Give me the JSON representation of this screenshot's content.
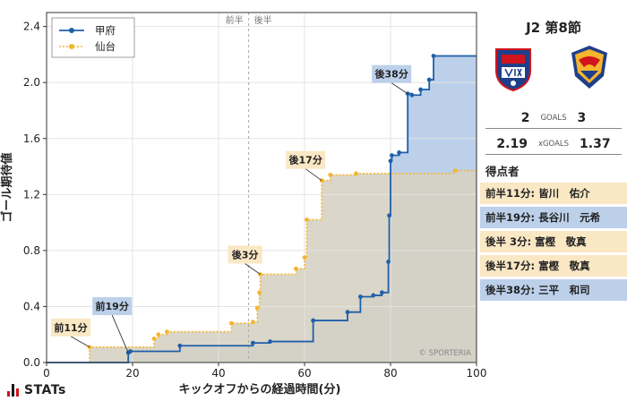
{
  "chart_data": {
    "type": "step-line",
    "xlabel": "キックオフからの経過時間(分)",
    "ylabel": "ゴール期待値",
    "xlim": [
      0,
      100
    ],
    "ylim": [
      0,
      2.5
    ],
    "xticks": [
      0,
      20,
      40,
      60,
      80,
      100
    ],
    "yticks": [
      0.0,
      0.4,
      0.8,
      1.2,
      1.6,
      2.0,
      2.4
    ],
    "halftime_x": 47,
    "halftime_labels": [
      "前半",
      "後半"
    ],
    "watermark": "© SPORTERIA",
    "legend": {
      "position": "top-left"
    },
    "series": [
      {
        "name": "甲府",
        "color": "#1f5fa8",
        "fill": "#bcd0ea",
        "points": [
          [
            0,
            0.0
          ],
          [
            19,
            0.07
          ],
          [
            19.5,
            0.08
          ],
          [
            31,
            0.12
          ],
          [
            48,
            0.14
          ],
          [
            52,
            0.15
          ],
          [
            62,
            0.3
          ],
          [
            70,
            0.36
          ],
          [
            73,
            0.47
          ],
          [
            76,
            0.48
          ],
          [
            78,
            0.5
          ],
          [
            79.5,
            0.72
          ],
          [
            79.7,
            1.05
          ],
          [
            80,
            1.44
          ],
          [
            80.3,
            1.48
          ],
          [
            82,
            1.5
          ],
          [
            84,
            1.92
          ],
          [
            85,
            1.91
          ],
          [
            87,
            1.95
          ],
          [
            89,
            2.02
          ],
          [
            90,
            2.19
          ],
          [
            100,
            2.19
          ]
        ],
        "annotations": [
          {
            "label": "前19分",
            "x": 19,
            "y": 0.07
          },
          {
            "label": "後38分",
            "x": 84,
            "y": 1.92
          }
        ]
      },
      {
        "name": "仙台",
        "color": "#f5b52e",
        "fill": "#fae7c4",
        "points": [
          [
            0,
            0.0
          ],
          [
            10,
            0.11
          ],
          [
            25,
            0.17
          ],
          [
            26,
            0.2
          ],
          [
            28,
            0.22
          ],
          [
            43,
            0.28
          ],
          [
            48,
            0.29
          ],
          [
            49,
            0.39
          ],
          [
            49.5,
            0.5
          ],
          [
            49.7,
            0.63
          ],
          [
            58,
            0.67
          ],
          [
            60,
            0.75
          ],
          [
            60.5,
            1.02
          ],
          [
            64,
            1.3
          ],
          [
            66,
            1.34
          ],
          [
            72,
            1.35
          ],
          [
            95,
            1.37
          ],
          [
            100,
            1.37
          ]
        ],
        "annotations": [
          {
            "label": "前11分",
            "x": 10,
            "y": 0.11
          },
          {
            "label": "後3分",
            "x": 49.7,
            "y": 0.63
          },
          {
            "label": "後17分",
            "x": 64,
            "y": 1.3
          }
        ]
      }
    ]
  },
  "match": {
    "title": "J2 第8節",
    "home": {
      "score": "2",
      "xg": "2.19"
    },
    "away": {
      "score": "3",
      "xg": "1.37"
    },
    "goals_label": "GOALS",
    "xg_label": "xGOALS"
  },
  "scorers_title": "得点者",
  "scorers": [
    {
      "text": "前半11分: 皆川　佑介",
      "team": "away"
    },
    {
      "text": "前半19分: 長谷川　元希",
      "team": "home"
    },
    {
      "text": "後半  3分: 富樫　敬真",
      "team": "away"
    },
    {
      "text": "後半17分: 富樫　敬真",
      "team": "away"
    },
    {
      "text": "後半38分: 三平　和司",
      "team": "home"
    }
  ],
  "brand": "STATs",
  "colors": {
    "home": "#1f5fa8",
    "away": "#f5b52e"
  }
}
